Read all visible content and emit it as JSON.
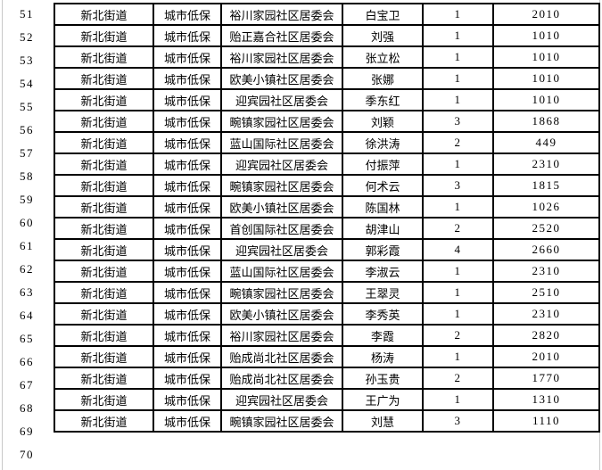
{
  "rows": [
    {
      "no": "51",
      "street": "新北街道",
      "type": "城市低保",
      "community": "裕川家园社区居委会",
      "name": "白宝卫",
      "count": "1",
      "amount": "2010"
    },
    {
      "no": "52",
      "street": "新北街道",
      "type": "城市低保",
      "community": "贻正嘉合社区居委会",
      "name": "刘强",
      "count": "1",
      "amount": "1010"
    },
    {
      "no": "53",
      "street": "新北街道",
      "type": "城市低保",
      "community": "裕川家园社区居委会",
      "name": "张立松",
      "count": "1",
      "amount": "1010"
    },
    {
      "no": "54",
      "street": "新北街道",
      "type": "城市低保",
      "community": "欧美小镇社区居委会",
      "name": "张娜",
      "count": "1",
      "amount": "1010"
    },
    {
      "no": "55",
      "street": "新北街道",
      "type": "城市低保",
      "community": "迎宾园社区居委会",
      "name": "季东红",
      "count": "1",
      "amount": "1010"
    },
    {
      "no": "56",
      "street": "新北街道",
      "type": "城市低保",
      "community": "畹镇家园社区居委会",
      "name": "刘颖",
      "count": "3",
      "amount": "1868"
    },
    {
      "no": "57",
      "street": "新北街道",
      "type": "城市低保",
      "community": "蓝山国际社区居委会",
      "name": "徐洪涛",
      "count": "2",
      "amount": "449"
    },
    {
      "no": "58",
      "street": "新北街道",
      "type": "城市低保",
      "community": "迎宾园社区居委会",
      "name": "付振萍",
      "count": "1",
      "amount": "2310"
    },
    {
      "no": "59",
      "street": "新北街道",
      "type": "城市低保",
      "community": "畹镇家园社区居委会",
      "name": "何术云",
      "count": "3",
      "amount": "1815"
    },
    {
      "no": "60",
      "street": "新北街道",
      "type": "城市低保",
      "community": "欧美小镇社区居委会",
      "name": "陈国林",
      "count": "1",
      "amount": "1026"
    },
    {
      "no": "61",
      "street": "新北街道",
      "type": "城市低保",
      "community": "首创国际社区居委会",
      "name": "胡津山",
      "count": "2",
      "amount": "2520"
    },
    {
      "no": "62",
      "street": "新北街道",
      "type": "城市低保",
      "community": "迎宾园社区居委会",
      "name": "郭彩霞",
      "count": "4",
      "amount": "2660"
    },
    {
      "no": "63",
      "street": "新北街道",
      "type": "城市低保",
      "community": "蓝山国际社区居委会",
      "name": "李淑云",
      "count": "1",
      "amount": "2310"
    },
    {
      "no": "64",
      "street": "新北街道",
      "type": "城市低保",
      "community": "畹镇家园社区居委会",
      "name": "王翠灵",
      "count": "1",
      "amount": "2510"
    },
    {
      "no": "65",
      "street": "新北街道",
      "type": "城市低保",
      "community": "欧美小镇社区居委会",
      "name": "李秀英",
      "count": "1",
      "amount": "2310"
    },
    {
      "no": "66",
      "street": "新北街道",
      "type": "城市低保",
      "community": "裕川家园社区居委会",
      "name": "李霞",
      "count": "2",
      "amount": "2820"
    },
    {
      "no": "67",
      "street": "新北街道",
      "type": "城市低保",
      "community": "贻成尚北社区居委会",
      "name": "杨涛",
      "count": "1",
      "amount": "2010"
    },
    {
      "no": "68",
      "street": "新北街道",
      "type": "城市低保",
      "community": "贻成尚北社区居委会",
      "name": "孙玉贵",
      "count": "2",
      "amount": "1770"
    },
    {
      "no": "69",
      "street": "新北街道",
      "type": "城市低保",
      "community": "迎宾园社区居委会",
      "name": "王广为",
      "count": "1",
      "amount": "1310"
    },
    {
      "no": "70",
      "street": "新北街道",
      "type": "城市低保",
      "community": "畹镇家园社区居委会",
      "name": "刘慧",
      "count": "3",
      "amount": "1110"
    }
  ]
}
